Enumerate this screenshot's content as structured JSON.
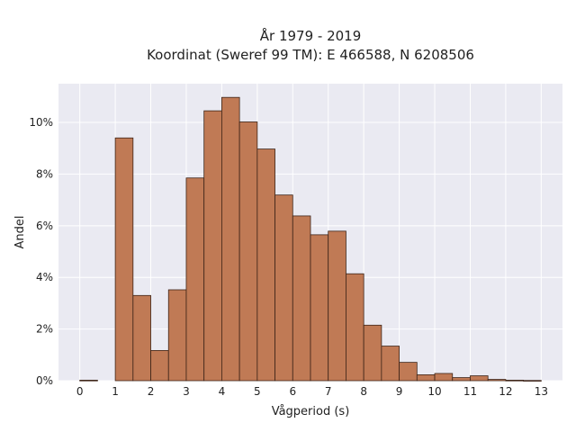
{
  "chart_data": {
    "type": "bar",
    "title": "År 1979 - 2019",
    "subtitle": "Koordinat (Sweref 99 TM): E 466588, N 6208506",
    "xlabel": "Vågperiod (s)",
    "ylabel": "Andel",
    "bin_width": 0.5,
    "bins_start": [
      0,
      0.5,
      1,
      1.5,
      2,
      2.5,
      3,
      3.5,
      4,
      4.5,
      5,
      5.5,
      6,
      6.5,
      7,
      7.5,
      8,
      8.5,
      9,
      9.5,
      10,
      10.5,
      11,
      11.5,
      12,
      12.5
    ],
    "values": [
      0.02,
      0,
      9.4,
      3.3,
      1.17,
      3.52,
      7.85,
      10.45,
      10.97,
      10.02,
      8.97,
      7.19,
      6.38,
      5.65,
      5.79,
      4.14,
      2.15,
      1.34,
      0.71,
      0.23,
      0.28,
      0.12,
      0.19,
      0.05,
      0.02,
      0.01
    ],
    "value_unit": "%",
    "xlim": [
      -0.6,
      13.6
    ],
    "ylim": [
      0,
      11.5
    ],
    "xticks": [
      "0",
      "1",
      "2",
      "3",
      "4",
      "5",
      "6",
      "7",
      "8",
      "9",
      "10",
      "11",
      "12",
      "13"
    ],
    "yticks": [
      "0%",
      "2%",
      "4%",
      "6%",
      "8%",
      "10%"
    ],
    "grid": true,
    "colors": {
      "bar_fill": "#c07a55",
      "bar_edge": "#3d2418",
      "plot_background": "#eaeaf2",
      "grid": "#ffffff"
    }
  }
}
